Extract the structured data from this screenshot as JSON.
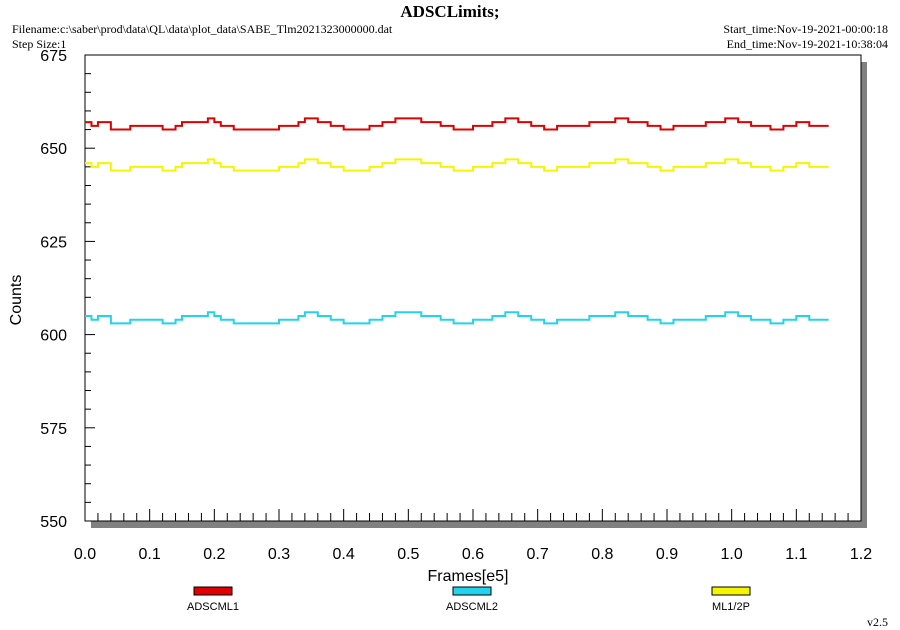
{
  "header": {
    "title": "ADSCLimits;",
    "filename": "Filename:c:\\saber\\prod\\data\\QL\\data\\plot_data\\SABE_Tlm2021323000000.dat",
    "step_size": "Step Size:1",
    "start_time": "Start_time:Nov-19-2021-00:00:18",
    "end_time": "End_time:Nov-19-2021-10:38:04",
    "version": "v2.5"
  },
  "colors": {
    "ADSCML1": "#e00000",
    "ADSCML2": "#22d3ee",
    "ML1/2P": "#f5f500",
    "shadow": "#808080"
  },
  "chart_data": {
    "type": "line",
    "title": "ADSCLimits;",
    "xlabel": "Frames[e5]",
    "ylabel": "Counts",
    "xlim": [
      0.0,
      1.2
    ],
    "ylim": [
      550,
      675
    ],
    "x_ticks": [
      "0.0",
      "0.1",
      "0.2",
      "0.3",
      "0.4",
      "0.5",
      "0.6",
      "0.7",
      "0.8",
      "0.9",
      "1.0",
      "1.1",
      "1.2"
    ],
    "y_ticks": [
      "550",
      "575",
      "600",
      "625",
      "650",
      "675"
    ],
    "grid": false,
    "legend": "bottom",
    "series": [
      {
        "name": "ADSCML1",
        "color": "#e00000",
        "x": [
          0.0,
          0.01,
          0.02,
          0.04,
          0.07,
          0.1,
          0.12,
          0.14,
          0.15,
          0.19,
          0.2,
          0.21,
          0.23,
          0.3,
          0.33,
          0.34,
          0.36,
          0.38,
          0.4,
          0.44,
          0.46,
          0.48,
          0.52,
          0.55,
          0.57,
          0.6,
          0.63,
          0.65,
          0.67,
          0.69,
          0.71,
          0.73,
          0.76,
          0.78,
          0.82,
          0.84,
          0.87,
          0.89,
          0.91,
          0.93,
          0.96,
          0.99,
          1.01,
          1.03,
          1.06,
          1.08,
          1.1,
          1.12,
          1.15
        ],
        "y": [
          657,
          656,
          657,
          655,
          656,
          656,
          655,
          656,
          657,
          658,
          657,
          656,
          655,
          656,
          657,
          658,
          657,
          656,
          655,
          656,
          657,
          658,
          657,
          656,
          655,
          656,
          657,
          658,
          657,
          656,
          655,
          656,
          656,
          657,
          658,
          657,
          656,
          655,
          656,
          656,
          657,
          658,
          657,
          656,
          655,
          656,
          657,
          656,
          656
        ]
      },
      {
        "name": "ADSCML2",
        "color": "#22d3ee",
        "x": [
          0.0,
          0.01,
          0.02,
          0.04,
          0.07,
          0.1,
          0.12,
          0.14,
          0.15,
          0.19,
          0.2,
          0.21,
          0.23,
          0.3,
          0.33,
          0.34,
          0.36,
          0.38,
          0.4,
          0.44,
          0.46,
          0.48,
          0.52,
          0.55,
          0.57,
          0.6,
          0.63,
          0.65,
          0.67,
          0.69,
          0.71,
          0.73,
          0.76,
          0.78,
          0.82,
          0.84,
          0.87,
          0.89,
          0.91,
          0.93,
          0.96,
          0.99,
          1.01,
          1.03,
          1.06,
          1.08,
          1.1,
          1.12,
          1.15
        ],
        "y": [
          605,
          604,
          605,
          603,
          604,
          604,
          603,
          604,
          605,
          606,
          605,
          604,
          603,
          604,
          605,
          606,
          605,
          604,
          603,
          604,
          605,
          606,
          605,
          604,
          603,
          604,
          605,
          606,
          605,
          604,
          603,
          604,
          604,
          605,
          606,
          605,
          604,
          603,
          604,
          604,
          605,
          606,
          605,
          604,
          603,
          604,
          605,
          604,
          604
        ]
      },
      {
        "name": "ML1/2P",
        "color": "#f5f500",
        "x": [
          0.0,
          0.01,
          0.02,
          0.04,
          0.07,
          0.1,
          0.12,
          0.14,
          0.15,
          0.19,
          0.2,
          0.21,
          0.23,
          0.3,
          0.33,
          0.34,
          0.36,
          0.38,
          0.4,
          0.44,
          0.46,
          0.48,
          0.52,
          0.55,
          0.57,
          0.6,
          0.63,
          0.65,
          0.67,
          0.69,
          0.71,
          0.73,
          0.76,
          0.78,
          0.82,
          0.84,
          0.87,
          0.89,
          0.91,
          0.93,
          0.96,
          0.99,
          1.01,
          1.03,
          1.06,
          1.08,
          1.1,
          1.12,
          1.15
        ],
        "y": [
          646,
          645,
          646,
          644,
          645,
          645,
          644,
          645,
          646,
          647,
          646,
          645,
          644,
          645,
          646,
          647,
          646,
          645,
          644,
          645,
          646,
          647,
          646,
          645,
          644,
          645,
          646,
          647,
          646,
          645,
          644,
          645,
          645,
          646,
          647,
          646,
          645,
          644,
          645,
          645,
          646,
          647,
          646,
          645,
          644,
          645,
          646,
          645,
          645
        ]
      }
    ]
  }
}
